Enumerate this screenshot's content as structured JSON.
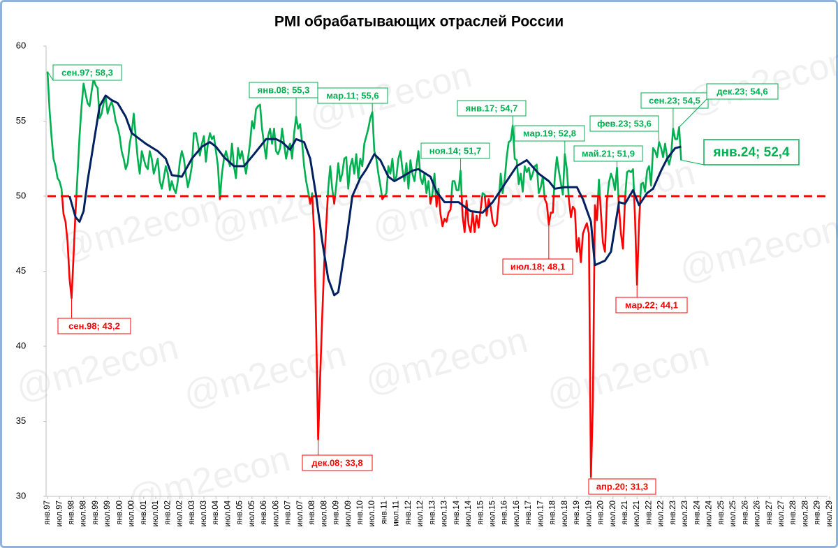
{
  "chart_data": {
    "type": "line",
    "title": "PMI обрабатывающих отраслей России",
    "watermark": "@m2econ",
    "xlim": [
      0,
      389
    ],
    "xticks": [
      {
        "value": 0,
        "label": "янв.97"
      },
      {
        "value": 6,
        "label": "июл.97"
      },
      {
        "value": 12,
        "label": "янв.98"
      },
      {
        "value": 18,
        "label": "июл.98"
      },
      {
        "value": 24,
        "label": "янв.99"
      },
      {
        "value": 30,
        "label": "июл.99"
      },
      {
        "value": 36,
        "label": "янв.00"
      },
      {
        "value": 42,
        "label": "июл.00"
      },
      {
        "value": 48,
        "label": "янв.01"
      },
      {
        "value": 54,
        "label": "июл.01"
      },
      {
        "value": 60,
        "label": "янв.02"
      },
      {
        "value": 66,
        "label": "июл.02"
      },
      {
        "value": 72,
        "label": "янв.03"
      },
      {
        "value": 78,
        "label": "июл.03"
      },
      {
        "value": 84,
        "label": "янв.04"
      },
      {
        "value": 90,
        "label": "июл.04"
      },
      {
        "value": 96,
        "label": "янв.05"
      },
      {
        "value": 102,
        "label": "июл.05"
      },
      {
        "value": 108,
        "label": "янв.06"
      },
      {
        "value": 114,
        "label": "июл.06"
      },
      {
        "value": 120,
        "label": "янв.07"
      },
      {
        "value": 126,
        "label": "июл.07"
      },
      {
        "value": 132,
        "label": "янв.08"
      },
      {
        "value": 138,
        "label": "июл.08"
      },
      {
        "value": 144,
        "label": "янв.09"
      },
      {
        "value": 150,
        "label": "июл.09"
      },
      {
        "value": 156,
        "label": "янв.10"
      },
      {
        "value": 162,
        "label": "июл.10"
      },
      {
        "value": 168,
        "label": "янв.11"
      },
      {
        "value": 174,
        "label": "июл.11"
      },
      {
        "value": 180,
        "label": "янв.12"
      },
      {
        "value": 186,
        "label": "июл.12"
      },
      {
        "value": 192,
        "label": "янв.13"
      },
      {
        "value": 198,
        "label": "июл.13"
      },
      {
        "value": 204,
        "label": "янв.14"
      },
      {
        "value": 210,
        "label": "июл.14"
      },
      {
        "value": 216,
        "label": "янв.15"
      },
      {
        "value": 222,
        "label": "июл.15"
      },
      {
        "value": 228,
        "label": "янв.16"
      },
      {
        "value": 234,
        "label": "июл.16"
      },
      {
        "value": 240,
        "label": "янв.17"
      },
      {
        "value": 246,
        "label": "июл.17"
      },
      {
        "value": 252,
        "label": "янв.18"
      },
      {
        "value": 258,
        "label": "июл.18"
      },
      {
        "value": 264,
        "label": "янв.19"
      },
      {
        "value": 270,
        "label": "июл.19"
      },
      {
        "value": 276,
        "label": "янв.20"
      },
      {
        "value": 282,
        "label": "июл.20"
      },
      {
        "value": 288,
        "label": "янв.21"
      },
      {
        "value": 294,
        "label": "июл.21"
      },
      {
        "value": 300,
        "label": "янв.22"
      },
      {
        "value": 306,
        "label": "июл.22"
      },
      {
        "value": 312,
        "label": "янв.23"
      },
      {
        "value": 318,
        "label": "июл.23"
      },
      {
        "value": 324,
        "label": "янв.24"
      },
      {
        "value": 330,
        "label": "июл.24"
      },
      {
        "value": 336,
        "label": "янв.25"
      },
      {
        "value": 342,
        "label": "июл.25"
      },
      {
        "value": 348,
        "label": "янв.26"
      },
      {
        "value": 354,
        "label": "июл.26"
      },
      {
        "value": 360,
        "label": "янв.27"
      },
      {
        "value": 366,
        "label": "июл.27"
      },
      {
        "value": 372,
        "label": "янв.28"
      },
      {
        "value": 378,
        "label": "июл.28"
      },
      {
        "value": 384,
        "label": "янв.29"
      },
      {
        "value": 390,
        "label": "июл.29"
      }
    ],
    "ylim": [
      30,
      60
    ],
    "yticks": [
      30,
      35,
      40,
      45,
      50,
      55,
      60
    ],
    "threshold": {
      "value": 50,
      "color": "#ff0000"
    },
    "series": [
      {
        "color": "#00b050",
        "below_color": "#ff0000",
        "x": [
          0,
          1,
          2,
          3,
          4,
          5,
          6,
          7,
          8,
          9,
          10,
          11,
          12,
          13,
          14,
          15,
          16,
          17,
          18,
          19,
          20,
          21,
          22,
          23,
          24,
          25,
          26,
          27,
          28,
          29,
          30,
          31,
          32,
          33,
          34,
          35,
          36,
          37,
          38,
          39,
          40,
          41,
          42,
          43,
          44,
          45,
          46,
          47,
          48,
          49,
          50,
          51,
          52,
          53,
          54,
          55,
          56,
          57,
          58,
          59,
          60,
          61,
          62,
          63,
          64,
          65,
          66,
          67,
          68,
          69,
          70,
          71,
          72,
          73,
          74,
          75,
          76,
          77,
          78,
          79,
          80,
          81,
          82,
          83,
          84,
          85,
          86,
          87,
          88,
          89,
          90,
          91,
          92,
          93,
          94,
          95,
          96,
          97,
          98,
          99,
          100,
          101,
          102,
          103,
          104,
          105,
          106,
          107,
          108,
          109,
          110,
          111,
          112,
          113,
          114,
          115,
          116,
          117,
          118,
          119,
          120,
          121,
          122,
          123,
          124,
          125,
          126,
          127,
          128,
          129,
          130,
          131,
          132,
          133,
          134,
          135,
          136,
          137,
          138,
          139,
          140,
          141,
          142,
          143,
          144,
          145,
          146,
          147,
          148,
          149,
          150,
          151,
          152,
          153,
          154,
          155,
          156,
          157,
          158,
          159,
          160,
          161,
          162,
          163,
          164,
          165,
          166,
          167,
          168,
          169,
          170,
          171,
          172,
          173,
          174,
          175,
          176,
          177,
          178,
          179,
          180,
          181,
          182,
          183,
          184,
          185,
          186,
          187,
          188,
          189,
          190,
          191,
          192,
          193,
          194,
          195,
          196,
          197,
          198,
          199,
          200,
          201,
          202,
          203,
          204,
          205,
          206,
          207,
          208,
          209,
          210,
          211,
          212,
          213,
          214,
          215,
          216,
          217,
          218,
          219,
          220,
          221,
          222,
          223,
          224,
          225,
          226,
          227,
          228,
          229,
          230,
          231,
          232,
          233,
          234,
          235,
          236,
          237,
          238,
          239,
          240,
          241,
          242,
          243,
          244,
          245,
          246,
          247,
          248,
          249,
          250,
          251,
          252,
          253,
          254,
          255,
          256,
          257,
          258,
          259,
          260,
          261,
          262,
          263,
          264,
          265,
          266,
          267,
          268,
          269,
          270,
          271,
          272,
          273,
          274,
          275,
          276,
          277,
          278,
          279,
          280,
          281,
          282,
          283,
          284,
          285,
          286,
          287,
          288,
          289,
          290,
          291,
          292,
          293,
          294,
          295,
          296,
          297,
          298,
          299,
          300,
          301,
          302,
          303,
          304,
          305,
          306,
          307,
          308,
          309,
          310,
          311,
          312,
          313,
          314,
          315,
          316
        ],
        "values": [
          58.3,
          55.8,
          54,
          52.5,
          52,
          51.2,
          51,
          50.5,
          48.8,
          48.3,
          47,
          44.5,
          43.2,
          46,
          49,
          51.5,
          54,
          56,
          57.5,
          56.8,
          56.2,
          56,
          57,
          57.8,
          57.4,
          57.2,
          55.2,
          55.5,
          56.2,
          56.6,
          55.5,
          56,
          56.3,
          55.8,
          55,
          54.6,
          54,
          53,
          52.5,
          51.8,
          52.2,
          53.5,
          54.2,
          55.5,
          54,
          52.5,
          51.5,
          53,
          52.5,
          52,
          51.8,
          53,
          52.5,
          51.5,
          52,
          52.5,
          51,
          50.5,
          51.2,
          52,
          51.5,
          50.4,
          51,
          50.5,
          50.2,
          51,
          52.3,
          53,
          52.5,
          51.5,
          50.6,
          51.2,
          52,
          54.2,
          54.2,
          53.5,
          52.7,
          53.5,
          54,
          52.3,
          53.5,
          54.2,
          53.8,
          54,
          53,
          52,
          49.8,
          51.5,
          52.5,
          53,
          52.5,
          52,
          53.5,
          52,
          51.2,
          53.2,
          52.5,
          53,
          52.2,
          51.5,
          52.5,
          53.5,
          55,
          54.5,
          55.8,
          56,
          56.1,
          54.5,
          53.5,
          52.5,
          54,
          54.5,
          53.5,
          54.5,
          53,
          52.8,
          53.2,
          54.5,
          53.5,
          52.5,
          53.2,
          53.5,
          52.5,
          54.2,
          55.3,
          54.5,
          54.8,
          53.5,
          52,
          51,
          50.3,
          49.5,
          50.2,
          47.5,
          41,
          33.8,
          38,
          42,
          45.5,
          48,
          50.5,
          52,
          50.5,
          49.5,
          50.7,
          52.2,
          51,
          51.5,
          52.5,
          52.6,
          50.5,
          52,
          52.5,
          51.5,
          52.8,
          51.2,
          52.5,
          52,
          53.5,
          54,
          54.5,
          55.2,
          55.6,
          53,
          52.5,
          51.5,
          50.7,
          49.8,
          50,
          50.2,
          52,
          51.5,
          52.5,
          51,
          51.3,
          52.5,
          53,
          51.8,
          51,
          52.2,
          50.5,
          52.4,
          51.5,
          51,
          52,
          53,
          51.2,
          50.8,
          51.5,
          50.2,
          51,
          49.5,
          50.2,
          51.5,
          49.3,
          50.5,
          48.8,
          48,
          48.5,
          48.3,
          48.9,
          49.1,
          51,
          51,
          50.4,
          50.4,
          51.7,
          48.7,
          47.6,
          49.7,
          48.1,
          47.6,
          48.9,
          47.6,
          48.7,
          47.9,
          49.1,
          50.2,
          50.1,
          48.7,
          49.8,
          49.3,
          48.3,
          48,
          48.1,
          49.6,
          51.5,
          50.2,
          51.1,
          52.6,
          53.6,
          53.7,
          54.7,
          52.5,
          52.4,
          50.8,
          51.5,
          50.3,
          52,
          51.6,
          51.9,
          51.1,
          51.5,
          52,
          52.1,
          50.2,
          50.6,
          51.3,
          49.8,
          49.5,
          48.1,
          48.9,
          48.9,
          51.3,
          52.6,
          51.7,
          50.9,
          50.1,
          52.8,
          51.8,
          49.8,
          48.6,
          49.3,
          49.1,
          46.3,
          47.2,
          45.6,
          47.5,
          47.9,
          48.2,
          47.5,
          31.3,
          36.2,
          49.4,
          48.4,
          51.1,
          48.9,
          46.9,
          46.3,
          49.7,
          50.9,
          51.5,
          51.1,
          50.4,
          51.9,
          49.2,
          47.5,
          46.5,
          49.8,
          51.6,
          51.7,
          51.6,
          51.8,
          48.6,
          44.1,
          48.2,
          50.8,
          50.9,
          50.3,
          51.7,
          52,
          50.7,
          53.2,
          53,
          52.6,
          53.6,
          53.2,
          52.6,
          53.5,
          52.6,
          52.1,
          52.7,
          54.5,
          53.8,
          53.8,
          54.6,
          52.4
        ]
      },
      {
        "color": "#002060",
        "x": [
          11,
          14,
          16,
          18,
          20,
          23,
          26,
          29,
          32,
          35,
          39,
          42,
          46,
          49,
          55,
          59,
          62,
          67,
          72,
          77,
          81,
          84,
          88,
          93,
          98,
          103,
          109,
          114,
          117,
          121,
          124,
          128,
          131,
          134,
          137,
          140,
          143,
          145,
          149,
          152,
          156,
          159,
          163,
          166,
          170,
          173,
          177,
          182,
          185,
          191,
          194,
          198,
          205,
          211,
          217,
          222,
          227,
          234,
          239,
          245,
          250,
          253,
          258,
          264,
          267,
          271,
          273,
          278,
          281,
          285,
          288,
          292,
          295,
          299,
          302,
          306,
          309,
          313,
          316
        ],
        "values": [
          50,
          48.6,
          48.3,
          49,
          51,
          53.5,
          56,
          56.7,
          56.4,
          56.2,
          55.3,
          54.2,
          53.8,
          53.5,
          53,
          52.5,
          51.4,
          51.3,
          52.5,
          53.3,
          53.6,
          53.3,
          52.6,
          52,
          52,
          52.8,
          53.8,
          53.8,
          53.6,
          53.1,
          53.8,
          53.6,
          52.5,
          50,
          47,
          44.5,
          43.4,
          43.6,
          47,
          50,
          51.2,
          51.8,
          52.8,
          52.4,
          51.3,
          51,
          51.3,
          51.7,
          51.8,
          51.3,
          50.3,
          49.6,
          49.6,
          49,
          48.9,
          49.6,
          50.6,
          52,
          52.4,
          51.5,
          51,
          50.5,
          50.6,
          50.6,
          49.8,
          48.3,
          45.4,
          45.7,
          46.3,
          49.6,
          49.5,
          50.4,
          49.4,
          50.2,
          50.5,
          51.7,
          52.5,
          53.2,
          53.3
        ]
      }
    ],
    "annotations": [
      {
        "text": "сен.97; 58,3",
        "x": 0,
        "y": 58.3,
        "color": "#00b050"
      },
      {
        "text": "сен.98; 43,2",
        "x": 12,
        "y": 43.2,
        "color": "#ff0000"
      },
      {
        "text": "янв.08; 55,3",
        "x": 124,
        "y": 55.3,
        "color": "#00b050"
      },
      {
        "text": "дек.08; 33,8",
        "x": 135,
        "y": 33.8,
        "color": "#ff0000"
      },
      {
        "text": "мар.11; 55,6",
        "x": 162,
        "y": 55.6,
        "color": "#00b050"
      },
      {
        "text": "ноя.14; 51,7",
        "x": 206,
        "y": 51.7,
        "color": "#00b050"
      },
      {
        "text": "янв.17; 54,7",
        "x": 232,
        "y": 54.7,
        "color": "#00b050"
      },
      {
        "text": "июл.18; 48,1",
        "x": 250,
        "y": 48.1,
        "color": "#ff0000"
      },
      {
        "text": "мар.19; 52,8",
        "x": 258,
        "y": 52.8,
        "color": "#00b050"
      },
      {
        "text": "апр.20; 31,3",
        "x": 271,
        "y": 31.3,
        "color": "#ff0000"
      },
      {
        "text": "май.21; 51,9",
        "x": 284,
        "y": 51.9,
        "color": "#00b050"
      },
      {
        "text": "мар.22; 44,1",
        "x": 294,
        "y": 44.1,
        "color": "#ff0000"
      },
      {
        "text": "фев.23; 53,6",
        "x": 305,
        "y": 53.6,
        "color": "#00b050"
      },
      {
        "text": "сен.23; 54,5",
        "x": 312,
        "y": 54.5,
        "color": "#00b050"
      },
      {
        "text": "дек.23; 54,6",
        "x": 315,
        "y": 54.6,
        "color": "#00b050"
      },
      {
        "text": "янв.24; 52,4",
        "x": 316,
        "y": 52.4,
        "color": "#00b050"
      }
    ]
  }
}
